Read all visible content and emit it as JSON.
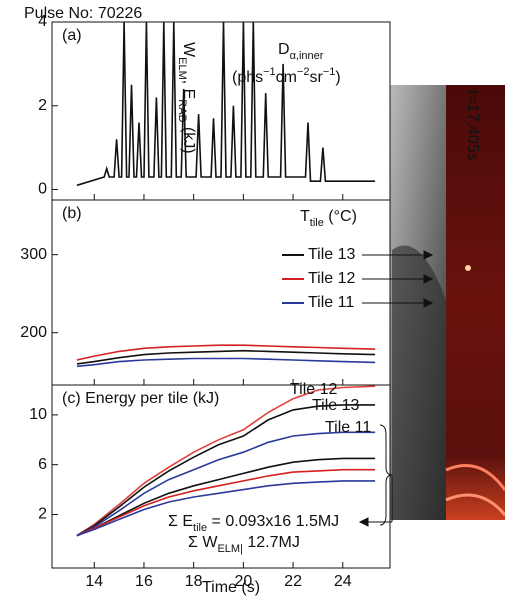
{
  "chart_data": [
    {
      "type": "line",
      "title": "Pulse No: 70226",
      "panel_label": "(a)",
      "ylabel": [
        {
          "text": "W"
        },
        {
          "sub": "ELM"
        },
        {
          "text": ", E"
        },
        {
          "sub": "RAD"
        },
        {
          "text": " (kJ)"
        }
      ],
      "annotations": [
        [
          {
            "text": "D"
          },
          {
            "sub": "α,inner"
          }
        ],
        [
          {
            "text": "(phs"
          },
          {
            "sup": "−1"
          },
          {
            "text": "cm"
          },
          {
            "sup": "−2"
          },
          {
            "text": "sr"
          },
          {
            "sup": "−1"
          },
          {
            "text": ")"
          }
        ]
      ],
      "xlim": [
        12.3,
        25.9
      ],
      "xticks": [
        14,
        16,
        18,
        20,
        22,
        24
      ],
      "ylim": [
        -0.25,
        4.0
      ],
      "yticks": [
        0,
        2,
        4
      ],
      "color": "#111111",
      "x": [
        13.3,
        14.4,
        14.5,
        14.6,
        14.8,
        14.9,
        15.0,
        15.1,
        15.2,
        15.3,
        15.4,
        15.5,
        15.6,
        15.7,
        15.8,
        15.9,
        16.0,
        16.1,
        16.2,
        16.4,
        16.5,
        16.6,
        16.7,
        16.8,
        16.9,
        17.1,
        17.2,
        17.3,
        17.5,
        17.6,
        17.7,
        18.1,
        18.2,
        18.3,
        18.7,
        18.8,
        18.9,
        19.1,
        19.2,
        19.3,
        19.5,
        19.6,
        19.7,
        19.9,
        20.0,
        20.1,
        20.3,
        20.4,
        20.5,
        20.8,
        20.9,
        21.0,
        21.5,
        21.6,
        21.7,
        22.5,
        22.6,
        22.7,
        23.1,
        23.2,
        23.3,
        25.3
      ],
      "values": [
        0.1,
        0.3,
        0.5,
        0.3,
        0.3,
        1.2,
        0.3,
        0.3,
        4.0,
        0.3,
        0.3,
        2.5,
        0.3,
        0.3,
        1.6,
        0.3,
        0.3,
        4.0,
        0.3,
        0.3,
        2.2,
        0.3,
        0.3,
        4.0,
        0.3,
        0.3,
        4.0,
        0.3,
        0.3,
        2.4,
        0.3,
        0.3,
        1.8,
        0.3,
        0.3,
        1.7,
        0.3,
        0.3,
        4.0,
        0.3,
        0.3,
        2.0,
        0.3,
        0.3,
        4.0,
        0.3,
        0.3,
        4.0,
        0.3,
        0.3,
        2.3,
        0.3,
        0.3,
        3.0,
        0.3,
        0.3,
        1.6,
        0.2,
        0.2,
        1.0,
        0.2,
        0.2
      ]
    },
    {
      "type": "line",
      "panel_label": "(b)",
      "ylabel": [
        {
          "text": "T"
        },
        {
          "sub": "tile"
        },
        {
          "text": " (°C)"
        }
      ],
      "xlim": [
        12.3,
        25.9
      ],
      "xticks": [
        14,
        16,
        18,
        20,
        22,
        24
      ],
      "ylim": [
        133,
        370
      ],
      "yticks": [
        200,
        300
      ],
      "x": [
        13.3,
        14,
        15,
        16,
        17,
        18,
        19,
        20,
        21,
        22,
        23,
        24,
        25.3
      ],
      "series": [
        {
          "name": "Tile 13",
          "color": "#111111",
          "values": [
            160,
            163,
            168,
            172,
            174,
            175,
            176,
            177,
            176,
            175,
            174,
            173,
            172
          ]
        },
        {
          "name": "Tile 12",
          "color": "#d42020",
          "values": [
            165,
            170,
            176,
            180,
            182,
            183,
            184,
            184,
            183,
            182,
            181,
            180,
            179
          ]
        },
        {
          "name": "Tile 11",
          "color": "#2a3a9a",
          "values": [
            157,
            159,
            163,
            165,
            166,
            167,
            167,
            167,
            166,
            165,
            164,
            163,
            162
          ]
        }
      ]
    },
    {
      "type": "line",
      "panel_label": "(c) Energy per tile (kJ)",
      "xlabel": "Time (s)",
      "annotations": [
        [
          {
            "text": "Σ E"
          },
          {
            "sub": "tile"
          },
          {
            "text": " = 0.093x16   1.5MJ"
          }
        ],
        [
          {
            "text": "Σ W"
          },
          {
            "sub": "ELM|"
          },
          {
            "text": "   12.7MJ"
          }
        ]
      ],
      "image_label": "t=17.405s",
      "xlim": [
        12.3,
        25.9
      ],
      "xticks": [
        14,
        16,
        18,
        20,
        22,
        24
      ],
      "ylim": [
        -2.3,
        12.4
      ],
      "yticks": [
        2,
        6,
        10
      ],
      "x": [
        13.3,
        14,
        15,
        16,
        17,
        18,
        19,
        20,
        21,
        22,
        23,
        24,
        25.3
      ],
      "series": [
        {
          "name": "Tile 12",
          "color": "#e0403a",
          "values": [
            0.3,
            1.2,
            2.8,
            4.5,
            5.8,
            7.0,
            8.0,
            8.8,
            10.2,
            11.3,
            12.0,
            12.2,
            12.3
          ]
        },
        {
          "name": "Tile 13",
          "color": "#111111",
          "values": [
            0.3,
            1.1,
            2.6,
            4.2,
            5.5,
            6.6,
            7.6,
            8.3,
            9.6,
            10.4,
            10.7,
            10.8,
            10.8
          ]
        },
        {
          "name": "Tile 11",
          "color": "#2a3a9a",
          "values": [
            0.3,
            1.0,
            2.3,
            3.7,
            4.8,
            5.6,
            6.4,
            7.0,
            7.8,
            8.3,
            8.5,
            8.6,
            8.6
          ]
        },
        {
          "color": "#111111",
          "values": [
            0.3,
            0.9,
            1.9,
            2.9,
            3.7,
            4.3,
            4.8,
            5.3,
            5.8,
            6.2,
            6.4,
            6.5,
            6.5
          ]
        },
        {
          "color": "#d42020",
          "values": [
            0.3,
            0.9,
            1.8,
            2.7,
            3.4,
            3.9,
            4.3,
            4.7,
            5.1,
            5.4,
            5.5,
            5.6,
            5.6
          ]
        },
        {
          "color": "#2a3a9a",
          "values": [
            0.3,
            0.8,
            1.6,
            2.4,
            3.0,
            3.4,
            3.7,
            4.0,
            4.3,
            4.5,
            4.6,
            4.7,
            4.7
          ]
        }
      ]
    }
  ]
}
